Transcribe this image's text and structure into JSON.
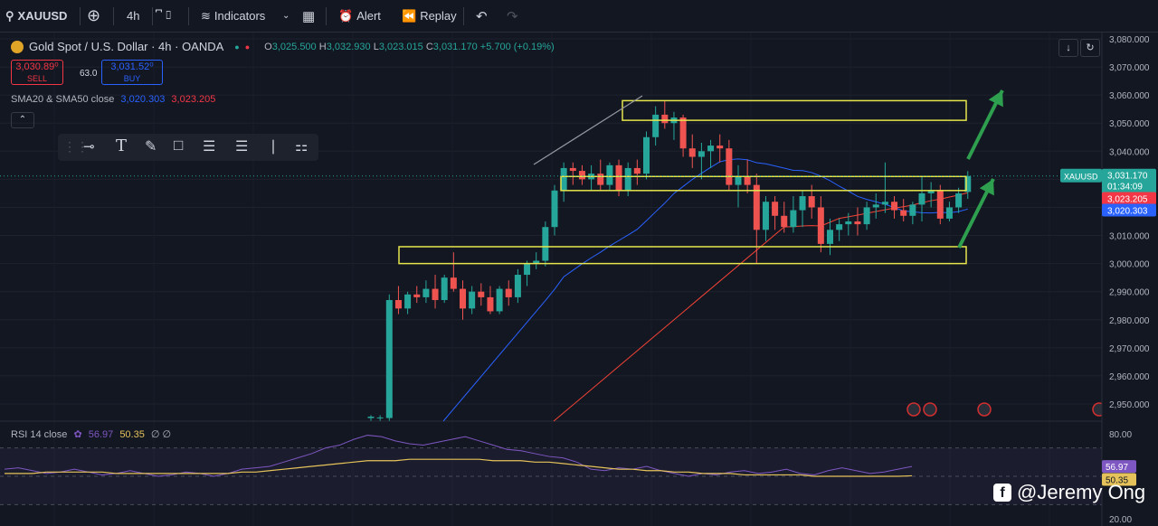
{
  "toolbar": {
    "symbol": "XAUUSD",
    "interval": "4h",
    "indicators_label": "Indicators",
    "alert_label": "Alert",
    "replay_label": "Replay"
  },
  "legend": {
    "title": "Gold Spot / U.S. Dollar · 4h · OANDA",
    "o_label": "O",
    "o_value": "3,025.500",
    "h_label": "H",
    "h_value": "3,032.930",
    "l_label": "L",
    "l_value": "3,023.015",
    "c_label": "C",
    "c_value": "3,031.170",
    "change": "+5.700 (+0.19%)"
  },
  "trade": {
    "sell_price": "3,030.89⁰",
    "sell_label": "SELL",
    "spread": "63.0",
    "buy_price": "3,031.52⁰",
    "buy_label": "BUY"
  },
  "sma_legend": {
    "label": "SMA20 & SMA50 close",
    "sma20": "3,020.303",
    "sma50": "3,023.205"
  },
  "rsi_legend": {
    "label": "RSI 14 close",
    "rsi": "56.97",
    "ma": "50.35",
    "extra": "∅ ∅"
  },
  "price_axis": {
    "ticks": [
      "3,080.000",
      "3,070.000",
      "3,060.000",
      "3,050.000",
      "3,040.000",
      "3,030.000",
      "3,020.000",
      "3,010.000",
      "3,000.000",
      "2,990.000",
      "2,980.000",
      "2,970.000",
      "2,960.000",
      "2,950.000"
    ],
    "current_symbol": "XAUUSD",
    "current_price": "3,031.170",
    "countdown": "01:34:09",
    "sma50_tag": "3,023.205",
    "sma20_tag": "3,020.303"
  },
  "rsi_axis": {
    "ticks": [
      "80.00",
      "20.00"
    ],
    "rsi_tag": "56.97",
    "ma_tag": "50.35"
  },
  "watermark": "@Jeremy Ong",
  "colors": {
    "up": "#26a69a",
    "down": "#ef5350",
    "sma20": "#2962ff",
    "sma50": "#f44336",
    "zone": "#e6e64c",
    "arrow": "#2e9e4f",
    "rsi": "#7e57c2",
    "rsi_ma": "#e5c35a"
  },
  "chart_data": {
    "type": "candlestick",
    "title": "Gold Spot / U.S. Dollar · 4h · OANDA",
    "ylim": [
      2945,
      3082
    ],
    "candles": [
      {
        "o": 2945,
        "h": 2946,
        "l": 2944,
        "c": 2945.5
      },
      {
        "o": 2945,
        "h": 2946,
        "l": 2944,
        "c": 2945.2
      },
      {
        "o": 2945,
        "h": 2989,
        "l": 2944,
        "c": 2987
      },
      {
        "o": 2987,
        "h": 2992,
        "l": 2982,
        "c": 2984
      },
      {
        "o": 2984,
        "h": 2990,
        "l": 2982,
        "c": 2989
      },
      {
        "o": 2989,
        "h": 2992,
        "l": 2986,
        "c": 2988
      },
      {
        "o": 2988,
        "h": 2994,
        "l": 2986,
        "c": 2991
      },
      {
        "o": 2991,
        "h": 2996,
        "l": 2984,
        "c": 2987
      },
      {
        "o": 2987,
        "h": 2996,
        "l": 2986,
        "c": 2995
      },
      {
        "o": 2995,
        "h": 3004,
        "l": 2990,
        "c": 2991
      },
      {
        "o": 2991,
        "h": 2994,
        "l": 2980,
        "c": 2984
      },
      {
        "o": 2984,
        "h": 2992,
        "l": 2982,
        "c": 2990
      },
      {
        "o": 2990,
        "h": 2993,
        "l": 2985,
        "c": 2988
      },
      {
        "o": 2988,
        "h": 2992,
        "l": 2982,
        "c": 2983
      },
      {
        "o": 2983,
        "h": 2992,
        "l": 2982,
        "c": 2991
      },
      {
        "o": 2991,
        "h": 2994,
        "l": 2985,
        "c": 2988
      },
      {
        "o": 2988,
        "h": 2998,
        "l": 2986,
        "c": 2996
      },
      {
        "o": 2996,
        "h": 3001,
        "l": 2992,
        "c": 3000
      },
      {
        "o": 3000,
        "h": 3004,
        "l": 2998,
        "c": 3001
      },
      {
        "o": 3001,
        "h": 3015,
        "l": 2999,
        "c": 3013
      },
      {
        "o": 3013,
        "h": 3028,
        "l": 3010,
        "c": 3026
      },
      {
        "o": 3026,
        "h": 3036,
        "l": 3022,
        "c": 3034
      },
      {
        "o": 3034,
        "h": 3036,
        "l": 3028,
        "c": 3033
      },
      {
        "o": 3033,
        "h": 3035,
        "l": 3028,
        "c": 3030
      },
      {
        "o": 3030,
        "h": 3035,
        "l": 3026,
        "c": 3032
      },
      {
        "o": 3032,
        "h": 3037,
        "l": 3026,
        "c": 3028
      },
      {
        "o": 3028,
        "h": 3036,
        "l": 3026,
        "c": 3035
      },
      {
        "o": 3035,
        "h": 3037,
        "l": 3024,
        "c": 3026
      },
      {
        "o": 3026,
        "h": 3036,
        "l": 3024,
        "c": 3034
      },
      {
        "o": 3034,
        "h": 3037,
        "l": 3028,
        "c": 3032
      },
      {
        "o": 3032,
        "h": 3047,
        "l": 3030,
        "c": 3045
      },
      {
        "o": 3045,
        "h": 3056,
        "l": 3042,
        "c": 3053
      },
      {
        "o": 3053,
        "h": 3058,
        "l": 3048,
        "c": 3050
      },
      {
        "o": 3050,
        "h": 3054,
        "l": 3044,
        "c": 3052
      },
      {
        "o": 3052,
        "h": 3053,
        "l": 3038,
        "c": 3041
      },
      {
        "o": 3041,
        "h": 3046,
        "l": 3034,
        "c": 3038
      },
      {
        "o": 3038,
        "h": 3043,
        "l": 3030,
        "c": 3040
      },
      {
        "o": 3040,
        "h": 3044,
        "l": 3034,
        "c": 3042
      },
      {
        "o": 3042,
        "h": 3046,
        "l": 3036,
        "c": 3041
      },
      {
        "o": 3041,
        "h": 3044,
        "l": 3026,
        "c": 3028
      },
      {
        "o": 3028,
        "h": 3035,
        "l": 3020,
        "c": 3031
      },
      {
        "o": 3031,
        "h": 3037,
        "l": 3025,
        "c": 3028
      },
      {
        "o": 3028,
        "h": 3032,
        "l": 3000,
        "c": 3012
      },
      {
        "o": 3012,
        "h": 3024,
        "l": 3008,
        "c": 3022
      },
      {
        "o": 3022,
        "h": 3024,
        "l": 3012,
        "c": 3017
      },
      {
        "o": 3017,
        "h": 3022,
        "l": 3011,
        "c": 3013
      },
      {
        "o": 3013,
        "h": 3024,
        "l": 3011,
        "c": 3019
      },
      {
        "o": 3019,
        "h": 3026,
        "l": 3013,
        "c": 3024
      },
      {
        "o": 3024,
        "h": 3028,
        "l": 3016,
        "c": 3020
      },
      {
        "o": 3020,
        "h": 3024,
        "l": 3004,
        "c": 3007
      },
      {
        "o": 3007,
        "h": 3016,
        "l": 3003,
        "c": 3012
      },
      {
        "o": 3012,
        "h": 3016,
        "l": 3008,
        "c": 3014
      },
      {
        "o": 3014,
        "h": 3018,
        "l": 3010,
        "c": 3015
      },
      {
        "o": 3015,
        "h": 3020,
        "l": 3010,
        "c": 3014
      },
      {
        "o": 3014,
        "h": 3022,
        "l": 3012,
        "c": 3020
      },
      {
        "o": 3020,
        "h": 3025,
        "l": 3016,
        "c": 3021
      },
      {
        "o": 3021,
        "h": 3036,
        "l": 3018,
        "c": 3022
      },
      {
        "o": 3022,
        "h": 3024,
        "l": 3016,
        "c": 3019
      },
      {
        "o": 3019,
        "h": 3023,
        "l": 3015,
        "c": 3017
      },
      {
        "o": 3017,
        "h": 3022,
        "l": 3014,
        "c": 3021
      },
      {
        "o": 3021,
        "h": 3031,
        "l": 3015,
        "c": 3025
      },
      {
        "o": 3025,
        "h": 3029,
        "l": 3020,
        "c": 3026
      },
      {
        "o": 3026,
        "h": 3028,
        "l": 3014,
        "c": 3016
      },
      {
        "o": 3016,
        "h": 3022,
        "l": 3015,
        "c": 3020
      },
      {
        "o": 3020,
        "h": 3027,
        "l": 3018,
        "c": 3025
      },
      {
        "o": 3025.5,
        "h": 3032.93,
        "l": 3023.015,
        "c": 3031.17
      }
    ],
    "zones": [
      {
        "low": 3051,
        "high": 3058
      },
      {
        "low": 3026,
        "high": 3031
      },
      {
        "low": 3000,
        "high": 3006
      }
    ],
    "rsi": {
      "ylim": [
        20,
        80
      ],
      "rsi": [
        55,
        56,
        54,
        52,
        53,
        55,
        53,
        51,
        52,
        54,
        52,
        50,
        51,
        53,
        52,
        50,
        52,
        55,
        56,
        57,
        60,
        63,
        66,
        70,
        72,
        76,
        79,
        78,
        75,
        73,
        72,
        74,
        76,
        78,
        75,
        72,
        69,
        68,
        66,
        64,
        63,
        60,
        55,
        54,
        56,
        55,
        57,
        54,
        52,
        50,
        52,
        51,
        53,
        54,
        52,
        53,
        55,
        52,
        51,
        54,
        56,
        54,
        52,
        53,
        55,
        56.97
      ],
      "ma": [
        52,
        52,
        52,
        53,
        53,
        53,
        53,
        53,
        52,
        52,
        52,
        52,
        52,
        52,
        52,
        52,
        52,
        53,
        53,
        54,
        55,
        56,
        57,
        58,
        59,
        60,
        61,
        61,
        61,
        62,
        62,
        62,
        62,
        62,
        62,
        61,
        61,
        61,
        60,
        60,
        59,
        58,
        57,
        56,
        55,
        55,
        54,
        54,
        53,
        53,
        52,
        52,
        52,
        51,
        51,
        51,
        51,
        51,
        50,
        50,
        50,
        50,
        50,
        50,
        50,
        50.35
      ]
    }
  }
}
